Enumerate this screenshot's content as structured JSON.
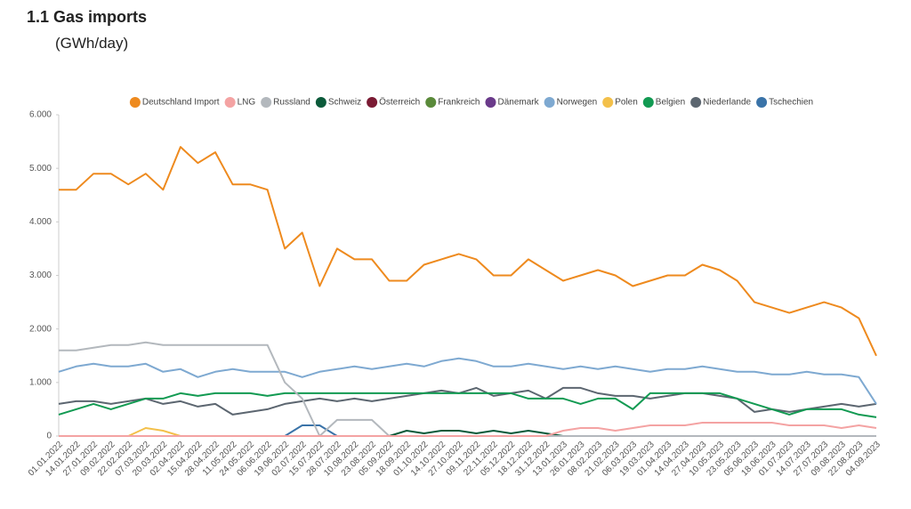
{
  "title": "1.1 Gas imports",
  "subtitle": "(GWh/day)",
  "chart_data": {
    "type": "line",
    "categories": [
      "01.01.2022",
      "14.01.2022",
      "27.01.2022",
      "09.02.2022",
      "22.02.2022",
      "07.03.2022",
      "20.03.2022",
      "02.04.2022",
      "15.04.2022",
      "28.04.2022",
      "11.05.2022",
      "24.05.2022",
      "06.06.2022",
      "19.06.2022",
      "02.07.2022",
      "15.07.2022",
      "28.07.2022",
      "10.08.2022",
      "23.08.2022",
      "05.09.2022",
      "18.09.2022",
      "01.10.2022",
      "14.10.2022",
      "27.10.2022",
      "09.11.2022",
      "22.11.2022",
      "05.12.2022",
      "18.12.2022",
      "31.12.2022",
      "13.01.2023",
      "26.01.2023",
      "08.02.2023",
      "21.02.2023",
      "06.03.2023",
      "19.03.2023",
      "01.04.2023",
      "14.04.2023",
      "27.04.2023",
      "10.05.2023",
      "23.05.2023",
      "05.06.2023",
      "18.06.2023",
      "01.07.2023",
      "14.07.2023",
      "27.07.2023",
      "09.08.2023",
      "22.08.2023",
      "04.09.2023"
    ],
    "ylim": [
      0,
      6000
    ],
    "yticks": [
      0,
      {
        "value": 1000,
        "label": "1.000"
      },
      {
        "value": 2000,
        "label": "2.000"
      },
      {
        "value": 3000,
        "label": "3.000"
      },
      {
        "value": 4000,
        "label": "4.000"
      },
      {
        "value": 5000,
        "label": "5.000"
      },
      {
        "value": 6000,
        "label": "6.000"
      }
    ],
    "grid": false,
    "legend": "top",
    "series": [
      {
        "name": "Deutschland Import",
        "color": "#ee8a1e",
        "values": [
          4600,
          4600,
          4900,
          4900,
          4700,
          4900,
          4600,
          5400,
          5100,
          5300,
          4700,
          4700,
          4600,
          3500,
          3800,
          2800,
          3500,
          3300,
          3300,
          2900,
          2900,
          3200,
          3300,
          3400,
          3300,
          3000,
          3000,
          3300,
          3100,
          2900,
          3000,
          3100,
          3000,
          2800,
          2900,
          3000,
          3000,
          3200,
          3100,
          2900,
          2500,
          2400,
          2300,
          2400,
          2500,
          2400,
          2200,
          1500
        ]
      },
      {
        "name": "LNG",
        "color": "#f4a3a3",
        "values": [
          0,
          0,
          0,
          0,
          0,
          0,
          0,
          0,
          0,
          0,
          0,
          0,
          0,
          0,
          0,
          0,
          0,
          0,
          0,
          0,
          0,
          0,
          0,
          0,
          0,
          0,
          0,
          0,
          0,
          100,
          150,
          150,
          100,
          150,
          200,
          200,
          200,
          250,
          250,
          250,
          250,
          250,
          200,
          200,
          200,
          150,
          200,
          150
        ]
      },
      {
        "name": "Russland",
        "color": "#b3b8bd",
        "values": [
          1600,
          1600,
          1650,
          1700,
          1700,
          1750,
          1700,
          1700,
          1700,
          1700,
          1700,
          1700,
          1700,
          1000,
          700,
          0,
          300,
          300,
          300,
          0,
          0,
          0,
          0,
          0,
          0,
          0,
          0,
          0,
          0,
          0,
          0,
          0,
          0,
          0,
          0,
          0,
          0,
          0,
          0,
          0,
          0,
          0,
          0,
          0,
          0,
          0,
          0,
          0
        ]
      },
      {
        "name": "Schweiz",
        "color": "#0b5a3a",
        "values": [
          0,
          0,
          0,
          0,
          0,
          0,
          0,
          0,
          0,
          0,
          0,
          0,
          0,
          0,
          0,
          0,
          0,
          0,
          0,
          0,
          100,
          50,
          100,
          100,
          50,
          100,
          50,
          100,
          50,
          0,
          0,
          0,
          0,
          0,
          0,
          0,
          0,
          0,
          0,
          0,
          0,
          0,
          0,
          0,
          0,
          0,
          0,
          0
        ]
      },
      {
        "name": "Österreich",
        "color": "#7a1a33",
        "values": [
          0,
          0,
          0,
          0,
          0,
          0,
          0,
          0,
          0,
          0,
          0,
          0,
          0,
          0,
          0,
          0,
          0,
          0,
          0,
          0,
          0,
          0,
          0,
          0,
          0,
          0,
          0,
          0,
          0,
          0,
          0,
          0,
          0,
          0,
          0,
          0,
          0,
          0,
          0,
          0,
          0,
          0,
          0,
          0,
          0,
          0,
          0,
          0
        ]
      },
      {
        "name": "Frankreich",
        "color": "#5a8a3a",
        "values": [
          0,
          0,
          0,
          0,
          0,
          0,
          0,
          0,
          0,
          0,
          0,
          0,
          0,
          0,
          0,
          0,
          0,
          0,
          0,
          0,
          0,
          0,
          0,
          0,
          0,
          0,
          0,
          0,
          0,
          0,
          0,
          0,
          0,
          0,
          0,
          0,
          0,
          0,
          0,
          0,
          0,
          0,
          0,
          0,
          0,
          0,
          0,
          0
        ]
      },
      {
        "name": "Dänemark",
        "color": "#6a3a8a",
        "values": [
          0,
          0,
          0,
          0,
          0,
          0,
          0,
          0,
          0,
          0,
          0,
          0,
          0,
          0,
          0,
          0,
          0,
          0,
          0,
          0,
          0,
          0,
          0,
          0,
          0,
          0,
          0,
          0,
          0,
          0,
          0,
          0,
          0,
          0,
          0,
          0,
          0,
          0,
          0,
          0,
          0,
          0,
          0,
          0,
          0,
          0,
          0,
          0
        ]
      },
      {
        "name": "Norwegen",
        "color": "#7ea9d1",
        "values": [
          1200,
          1300,
          1350,
          1300,
          1300,
          1350,
          1200,
          1250,
          1100,
          1200,
          1250,
          1200,
          1200,
          1200,
          1100,
          1200,
          1250,
          1300,
          1250,
          1300,
          1350,
          1300,
          1400,
          1450,
          1400,
          1300,
          1300,
          1350,
          1300,
          1250,
          1300,
          1250,
          1300,
          1250,
          1200,
          1250,
          1250,
          1300,
          1250,
          1200,
          1200,
          1150,
          1150,
          1200,
          1150,
          1150,
          1100,
          600
        ]
      },
      {
        "name": "Polen",
        "color": "#f3c04a",
        "values": [
          0,
          0,
          0,
          0,
          0,
          150,
          100,
          0,
          0,
          0,
          0,
          0,
          0,
          0,
          0,
          0,
          0,
          0,
          0,
          0,
          0,
          0,
          0,
          0,
          0,
          0,
          0,
          0,
          0,
          0,
          0,
          0,
          0,
          0,
          0,
          0,
          0,
          0,
          0,
          0,
          0,
          0,
          0,
          0,
          0,
          0,
          0,
          0
        ]
      },
      {
        "name": "Belgien",
        "color": "#129a52",
        "values": [
          400,
          500,
          600,
          500,
          600,
          700,
          700,
          800,
          750,
          800,
          800,
          800,
          750,
          800,
          800,
          800,
          800,
          800,
          800,
          800,
          800,
          800,
          800,
          800,
          800,
          800,
          800,
          700,
          700,
          700,
          600,
          700,
          700,
          500,
          800,
          800,
          800,
          800,
          800,
          700,
          600,
          500,
          400,
          500,
          500,
          500,
          400,
          350
        ]
      },
      {
        "name": "Niederlande",
        "color": "#5c6670",
        "values": [
          600,
          650,
          650,
          600,
          650,
          700,
          600,
          650,
          550,
          600,
          400,
          450,
          500,
          600,
          650,
          700,
          650,
          700,
          650,
          700,
          750,
          800,
          850,
          800,
          900,
          750,
          800,
          850,
          700,
          900,
          900,
          800,
          750,
          750,
          700,
          750,
          800,
          800,
          750,
          700,
          450,
          500,
          450,
          500,
          550,
          600,
          550,
          600
        ]
      },
      {
        "name": "Tschechien",
        "color": "#3a73a8",
        "values": [
          0,
          0,
          0,
          0,
          0,
          0,
          0,
          0,
          0,
          0,
          0,
          0,
          0,
          0,
          200,
          200,
          0,
          0,
          0,
          0,
          0,
          0,
          0,
          0,
          0,
          0,
          0,
          0,
          0,
          0,
          0,
          0,
          0,
          0,
          0,
          0,
          0,
          0,
          0,
          0,
          0,
          0,
          0,
          0,
          0,
          0,
          0,
          0
        ]
      }
    ]
  }
}
